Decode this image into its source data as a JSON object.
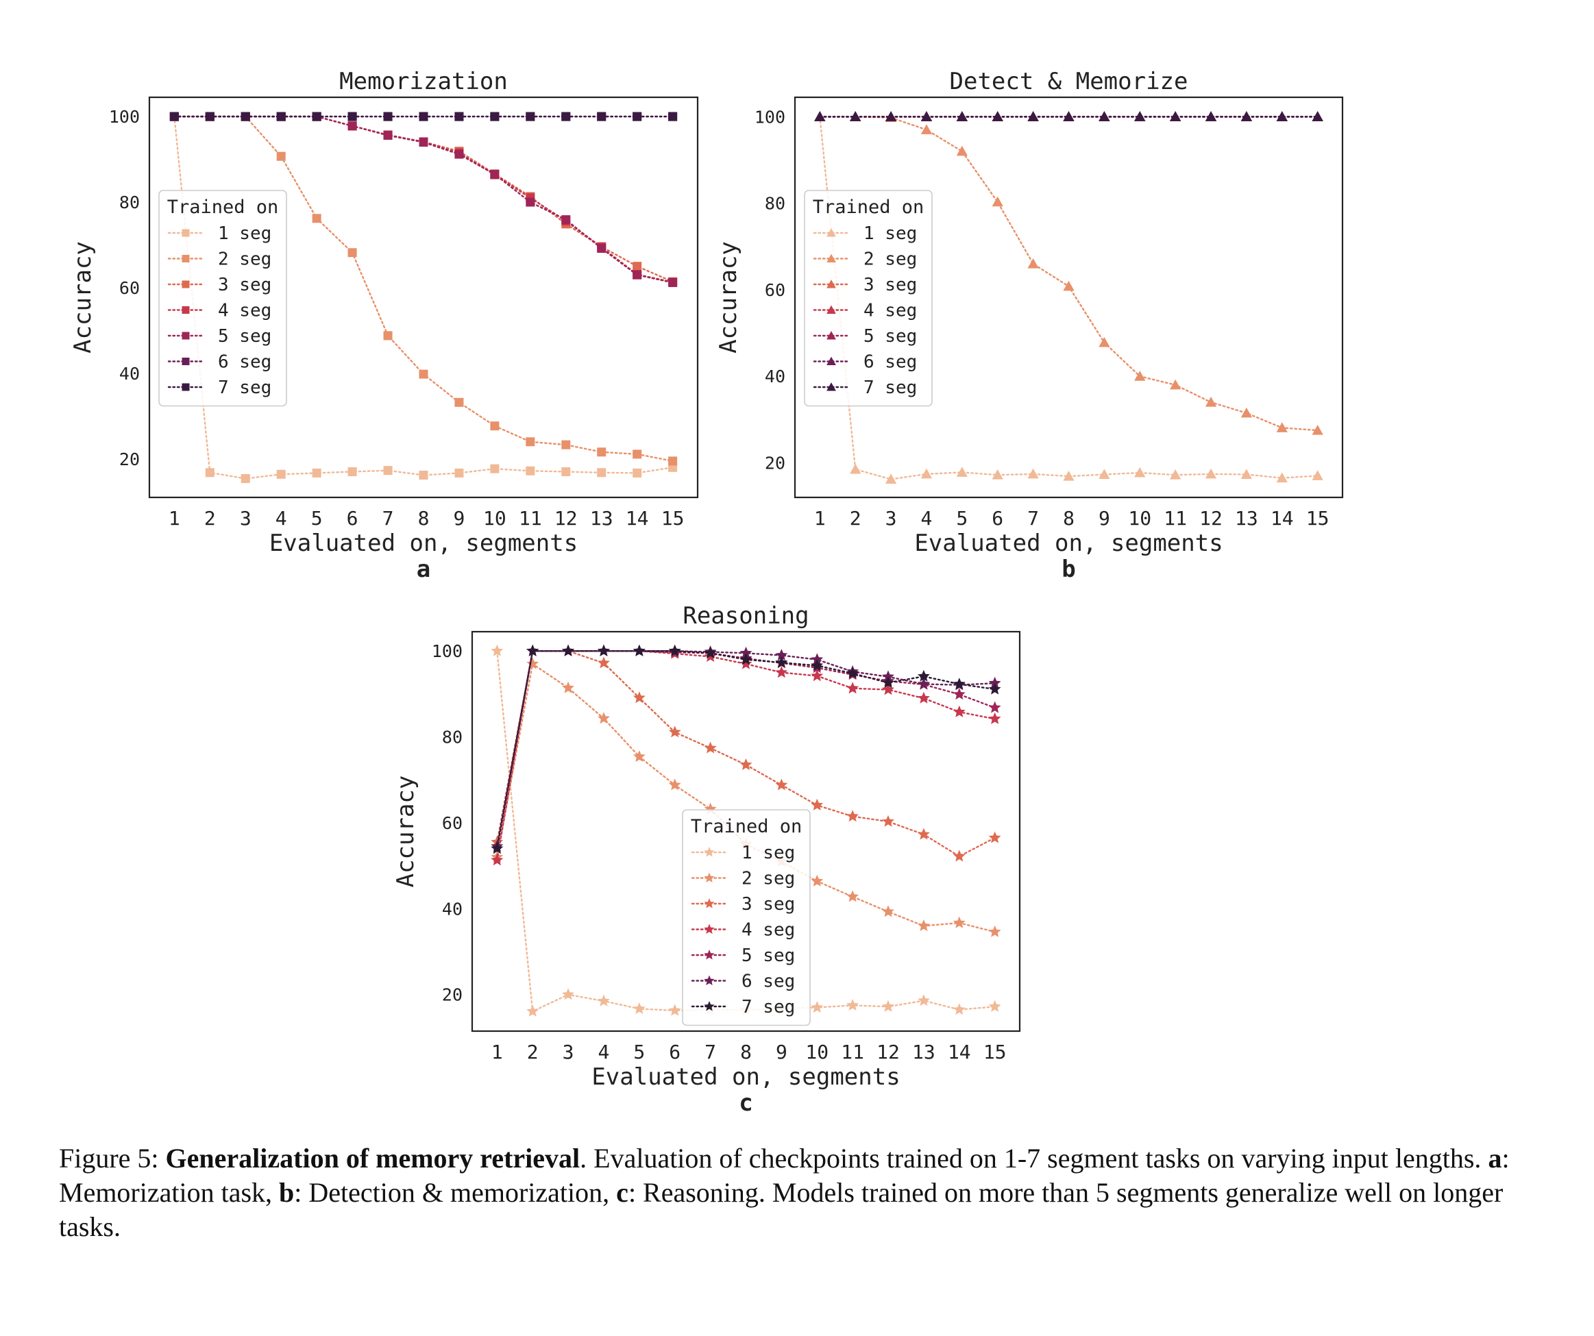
{
  "chart_data": [
    {
      "type": "line",
      "panel_letter": "a",
      "title": "Memorization",
      "xlabel": "Evaluated on, segments",
      "ylabel": "Accuracy",
      "xlim": [
        0.3,
        15.7
      ],
      "ylim": [
        11,
        104.5
      ],
      "yticks": [
        20,
        40,
        60,
        80,
        100
      ],
      "x": [
        1,
        2,
        3,
        4,
        5,
        6,
        7,
        8,
        9,
        10,
        11,
        12,
        13,
        14,
        15
      ],
      "marker": "square",
      "legend": {
        "title": "Trained on",
        "placement": "center-left"
      },
      "series": [
        {
          "name": "1 seg",
          "color": "#f1b996",
          "values": [
            100,
            16.8,
            15.4,
            16.4,
            16.7,
            17.0,
            17.3,
            16.2,
            16.7,
            17.7,
            17.2,
            17.0,
            16.8,
            16.7,
            18.0
          ]
        },
        {
          "name": "2 seg",
          "color": "#e8906a",
          "values": [
            100,
            100,
            100,
            90.7,
            76.2,
            68.2,
            48.8,
            39.8,
            33.2,
            27.7,
            24.0,
            23.3,
            21.6,
            21.1,
            19.5
          ]
        },
        {
          "name": "3 seg",
          "color": "#de6a4f",
          "values": [
            100,
            100,
            100,
            100,
            100,
            97.8,
            95.7,
            94.1,
            91.9,
            86.6,
            81.3,
            74.9,
            69.6,
            65.0,
            61.4
          ]
        },
        {
          "name": "4 seg",
          "color": "#c8384d",
          "values": [
            100,
            100,
            100,
            100,
            100,
            97.8,
            95.7,
            94.1,
            91.5,
            86.4,
            81.0,
            75.6,
            69.5,
            63.1,
            61.3
          ]
        },
        {
          "name": "5 seg",
          "color": "#9f2557",
          "values": [
            100,
            100,
            100,
            100,
            100,
            97.8,
            95.6,
            94.0,
            91.2,
            86.5,
            80.0,
            75.9,
            69.2,
            63.0,
            61.2
          ]
        },
        {
          "name": "6 seg",
          "color": "#6a1f57",
          "values": [
            100,
            100,
            100,
            100,
            100,
            100,
            100,
            100,
            100,
            100,
            100,
            100,
            100,
            100,
            100
          ]
        },
        {
          "name": "7 seg",
          "color": "#3b1a42",
          "values": [
            100,
            100,
            100,
            100,
            100,
            100,
            100,
            100,
            100,
            100,
            100,
            100,
            100,
            100,
            100
          ]
        }
      ]
    },
    {
      "type": "line",
      "panel_letter": "b",
      "title": "Detect & Memorize",
      "xlabel": "Evaluated on, segments",
      "ylabel": "Accuracy",
      "xlim": [
        0.3,
        15.7
      ],
      "ylim": [
        12,
        104.5
      ],
      "yticks": [
        20,
        40,
        60,
        80,
        100
      ],
      "x": [
        1,
        2,
        3,
        4,
        5,
        6,
        7,
        8,
        9,
        10,
        11,
        12,
        13,
        14,
        15
      ],
      "marker": "triangle",
      "legend": {
        "title": "Trained on",
        "placement": "center-left"
      },
      "series": [
        {
          "name": "1 seg",
          "color": "#f1b996",
          "values": [
            100,
            18.5,
            16.2,
            17.4,
            17.8,
            17.2,
            17.4,
            16.9,
            17.3,
            17.7,
            17.2,
            17.4,
            17.3,
            16.5,
            17.0
          ]
        },
        {
          "name": "2 seg",
          "color": "#e8906a",
          "values": [
            100,
            100,
            99.8,
            97.0,
            92.0,
            80.3,
            66.0,
            60.8,
            47.8,
            40.0,
            38.0,
            34.0,
            31.5,
            28.1,
            27.5
          ]
        },
        {
          "name": "3 seg",
          "color": "#de6a4f",
          "values": [
            100,
            100,
            100,
            100,
            100,
            100,
            100,
            100,
            100,
            100,
            100,
            100,
            100,
            100,
            100
          ]
        },
        {
          "name": "4 seg",
          "color": "#c8384d",
          "values": [
            100,
            100,
            100,
            100,
            100,
            100,
            100,
            100,
            100,
            100,
            100,
            100,
            100,
            100,
            100
          ]
        },
        {
          "name": "5 seg",
          "color": "#9f2557",
          "values": [
            100,
            100,
            100,
            100,
            100,
            100,
            100,
            100,
            100,
            100,
            100,
            100,
            100,
            100,
            100
          ]
        },
        {
          "name": "6 seg",
          "color": "#6a1f57",
          "values": [
            100,
            100,
            100,
            100,
            100,
            100,
            100,
            100,
            100,
            100,
            100,
            100,
            100,
            100,
            100
          ]
        },
        {
          "name": "7 seg",
          "color": "#3b1a42",
          "values": [
            100,
            100,
            100,
            100,
            100,
            100,
            100,
            100,
            100,
            100,
            100,
            100,
            100,
            100,
            100
          ]
        }
      ]
    },
    {
      "type": "line",
      "panel_letter": "c",
      "title": "Reasoning",
      "xlabel": "Evaluated on, segments",
      "ylabel": "Accuracy",
      "xlim": [
        0.3,
        15.7
      ],
      "ylim": [
        11.5,
        104.5
      ],
      "yticks": [
        20,
        40,
        60,
        80,
        100
      ],
      "x": [
        1,
        2,
        3,
        4,
        5,
        6,
        7,
        8,
        9,
        10,
        11,
        12,
        13,
        14,
        15
      ],
      "marker": "star",
      "legend": {
        "title": "Trained on",
        "placement": "center"
      },
      "series": [
        {
          "name": "1 seg",
          "color": "#f1b996",
          "values": [
            100,
            16.1,
            20.0,
            18.5,
            16.7,
            16.3,
            16.5,
            16.4,
            16.8,
            17.0,
            17.5,
            17.2,
            18.6,
            16.5,
            17.2
          ]
        },
        {
          "name": "2 seg",
          "color": "#e8906a",
          "values": [
            52.0,
            97.0,
            91.4,
            84.3,
            75.4,
            68.8,
            63.2,
            55.0,
            51.0,
            46.4,
            42.8,
            39.3,
            36.0,
            36.7,
            34.6
          ]
        },
        {
          "name": "3 seg",
          "color": "#de6a4f",
          "values": [
            55.5,
            100,
            100,
            97.2,
            89.1,
            81.1,
            77.4,
            73.5,
            68.8,
            64.1,
            61.5,
            60.3,
            57.3,
            52.2,
            56.5
          ]
        },
        {
          "name": "4 seg",
          "color": "#c8384d",
          "values": [
            51.3,
            100,
            100,
            100,
            100,
            99.4,
            98.7,
            97.0,
            95.0,
            94.2,
            91.3,
            91.0,
            89.0,
            85.8,
            84.2
          ]
        },
        {
          "name": "5 seg",
          "color": "#9f2557",
          "values": [
            54.0,
            100,
            100,
            100,
            100,
            99.7,
            99.5,
            98.3,
            97.2,
            96.1,
            94.5,
            93.0,
            92.2,
            89.9,
            86.8
          ]
        },
        {
          "name": "6 seg",
          "color": "#6a1f57",
          "values": [
            54.5,
            100,
            100,
            100,
            100,
            100,
            99.8,
            99.5,
            99.0,
            98.0,
            95.2,
            94.0,
            92.3,
            92.1,
            92.5
          ]
        },
        {
          "name": "7 seg",
          "color": "#2b1a33",
          "values": [
            54.0,
            100,
            100,
            100,
            100,
            100,
            99.5,
            98.0,
            97.3,
            96.6,
            94.8,
            92.6,
            94.1,
            92.3,
            91.1
          ]
        }
      ]
    }
  ],
  "caption": {
    "prefix": "Figure 5: ",
    "bold_title": "Generalization of memory retrieval",
    "text1": ". Evaluation of checkpoints trained on 1-7 segment tasks on varying input lengths. ",
    "a_label": "a",
    "a_text": ": Memorization task, ",
    "b_label": "b",
    "b_text": ": Detection & memorization, ",
    "c_label": "c",
    "c_text": ": Reasoning. Models trained on more than 5 segments generalize well on longer tasks."
  }
}
